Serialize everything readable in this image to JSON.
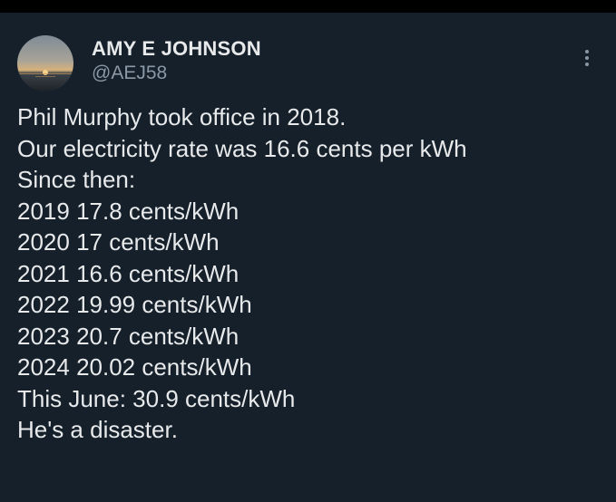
{
  "author": {
    "name": "AMY E JOHNSON",
    "handle": "@AEJ58",
    "avatar_icon": "sunset-over-water-avatar"
  },
  "more_icon": "more-options-icon",
  "post": {
    "lines": [
      "Phil Murphy took office in 2018.",
      "Our electricity rate was 16.6 cents per kWh",
      "Since then:",
      "2019 17.8 cents/kWh",
      "2020 17 cents/kWh",
      "2021 16.6 cents/kWh",
      "2022 19.99 cents/kWh",
      "2023 20.7 cents/kWh",
      "2024 20.02 cents/kWh",
      "This June: 30.9 cents/kWh",
      "He's a disaster."
    ]
  },
  "colors": {
    "background": "#15202b",
    "text": "#e7e9ea",
    "secondary_text": "#8b98a5"
  }
}
